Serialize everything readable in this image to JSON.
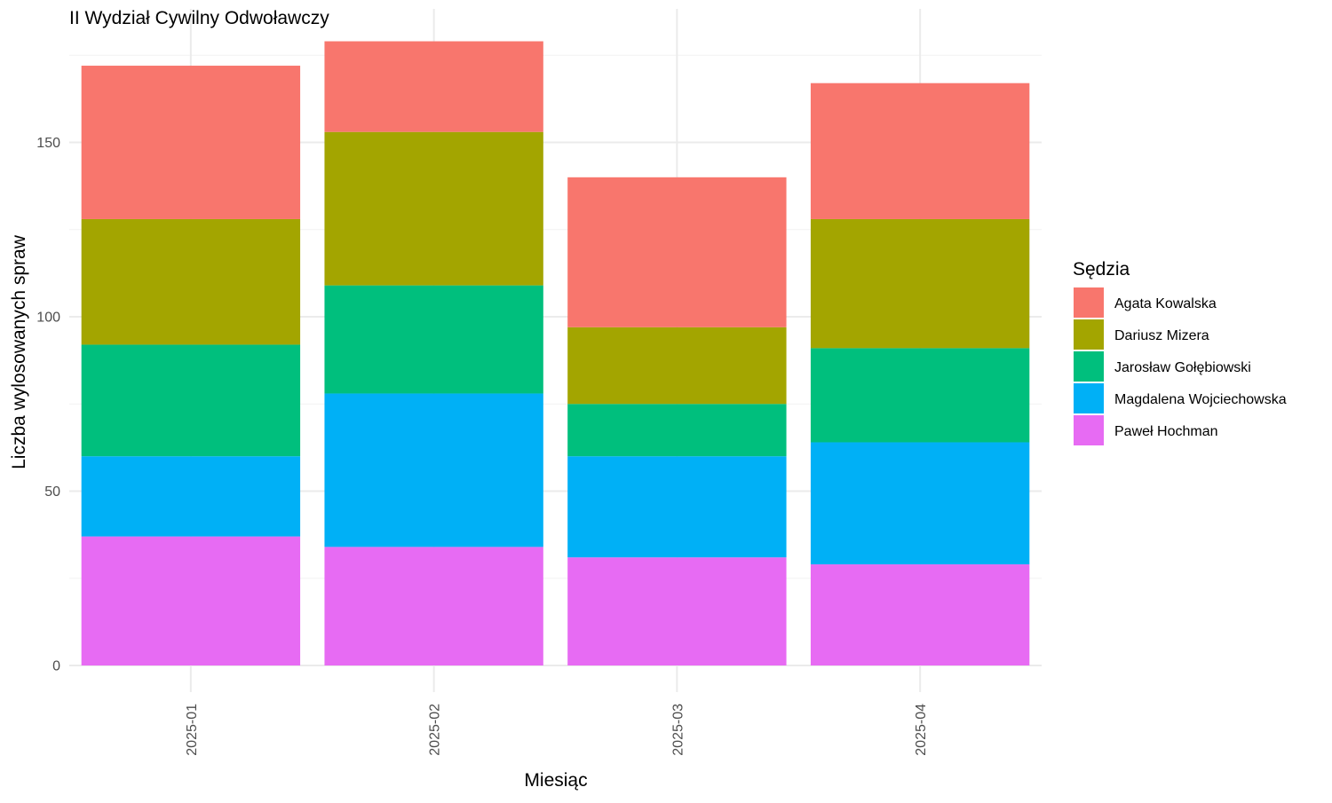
{
  "chart_data": {
    "type": "bar",
    "stacked": true,
    "title": "II Wydział Cywilny Odwoławczy",
    "xlabel": "Miesiąc",
    "ylabel": "Liczba wylosowanych spraw",
    "categories": [
      "2025-01",
      "2025-02",
      "2025-03",
      "2025-04"
    ],
    "ylim": [
      0,
      188
    ],
    "yticks": [
      0,
      50,
      100,
      150
    ],
    "grid": true,
    "legend": {
      "title": "Sędzia",
      "position": "right"
    },
    "stack_order": [
      "Paweł Hochman",
      "Magdalena Wojciechowska",
      "Jarosław Gołębiowski",
      "Dariusz Mizera",
      "Agata Kowalska"
    ],
    "series": [
      {
        "name": "Agata Kowalska",
        "color": "#F8766D",
        "values": [
          44,
          26,
          43,
          39
        ]
      },
      {
        "name": "Dariusz Mizera",
        "color": "#A3A500",
        "values": [
          36,
          44,
          22,
          37
        ]
      },
      {
        "name": "Jarosław Gołębiowski",
        "color": "#00BF7D",
        "values": [
          32,
          31,
          15,
          27
        ]
      },
      {
        "name": "Magdalena Wojciechowska",
        "color": "#00B0F6",
        "values": [
          23,
          44,
          29,
          35
        ]
      },
      {
        "name": "Paweł Hochman",
        "color": "#E76BF3",
        "values": [
          37,
          34,
          31,
          29
        ]
      }
    ]
  }
}
